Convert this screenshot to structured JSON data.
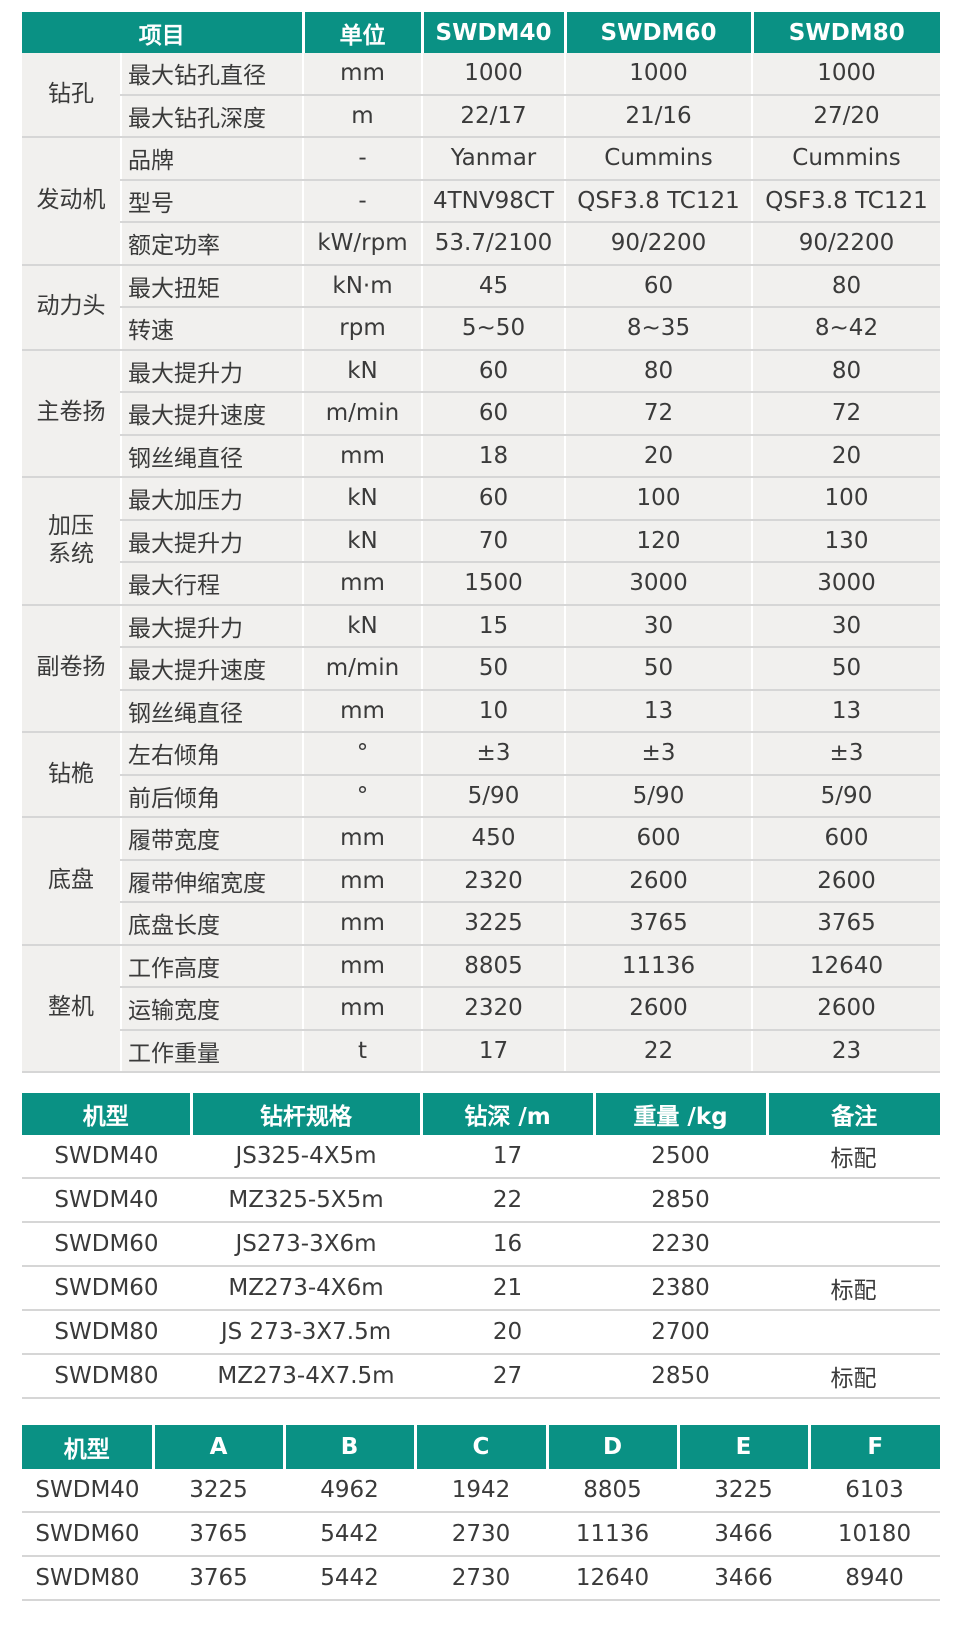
{
  "spec_table": {
    "headers": [
      "项目",
      "单位",
      "SWDM40",
      "SWDM60",
      "SWDM80"
    ],
    "groups": [
      {
        "name": "钻孔",
        "rows": [
          [
            "最大钻孔直径",
            "mm",
            "1000",
            "1000",
            "1000"
          ],
          [
            "最大钻孔深度",
            "m",
            "22/17",
            "21/16",
            "27/20"
          ]
        ]
      },
      {
        "name": "发动机",
        "rows": [
          [
            "品牌",
            "-",
            "Yanmar",
            "Cummins",
            "Cummins"
          ],
          [
            "型号",
            "-",
            "4TNV98CT",
            "QSF3.8 TC121",
            "QSF3.8 TC121"
          ],
          [
            "额定功率",
            "kW/rpm",
            "53.7/2100",
            "90/2200",
            "90/2200"
          ]
        ]
      },
      {
        "name": "动力头",
        "rows": [
          [
            "最大扭矩",
            "kN·m",
            "45",
            "60",
            "80"
          ],
          [
            "转速",
            "rpm",
            "5~50",
            "8~35",
            "8~42"
          ]
        ]
      },
      {
        "name": "主卷扬",
        "rows": [
          [
            "最大提升力",
            "kN",
            "60",
            "80",
            "80"
          ],
          [
            "最大提升速度",
            "m/min",
            "60",
            "72",
            "72"
          ],
          [
            "钢丝绳直径",
            "mm",
            "18",
            "20",
            "20"
          ]
        ]
      },
      {
        "name": "加压\n系统",
        "rows": [
          [
            "最大加压力",
            "kN",
            "60",
            "100",
            "100"
          ],
          [
            "最大提升力",
            "kN",
            "70",
            "120",
            "130"
          ],
          [
            "最大行程",
            "mm",
            "1500",
            "3000",
            "3000"
          ]
        ]
      },
      {
        "name": "副卷扬",
        "rows": [
          [
            "最大提升力",
            "kN",
            "15",
            "30",
            "30"
          ],
          [
            "最大提升速度",
            "m/min",
            "50",
            "50",
            "50"
          ],
          [
            "钢丝绳直径",
            "mm",
            "10",
            "13",
            "13"
          ]
        ]
      },
      {
        "name": "钻桅",
        "rows": [
          [
            "左右倾角",
            "°",
            "±3",
            "±3",
            "±3"
          ],
          [
            "前后倾角",
            "°",
            "5/90",
            "5/90",
            "5/90"
          ]
        ]
      },
      {
        "name": "底盘",
        "rows": [
          [
            "履带宽度",
            "mm",
            "450",
            "600",
            "600"
          ],
          [
            "履带伸缩宽度",
            "mm",
            "2320",
            "2600",
            "2600"
          ],
          [
            "底盘长度",
            "mm",
            "3225",
            "3765",
            "3765"
          ]
        ]
      },
      {
        "name": "整机",
        "rows": [
          [
            "工作高度",
            "mm",
            "8805",
            "11136",
            "12640"
          ],
          [
            "运输宽度",
            "mm",
            "2320",
            "2600",
            "2600"
          ],
          [
            "工作重量",
            "t",
            "17",
            "22",
            "23"
          ]
        ]
      }
    ]
  },
  "rod_table": {
    "headers": [
      "机型",
      "钻杆规格",
      "钻深 /m",
      "重量 /kg",
      "备注"
    ],
    "rows": [
      [
        "SWDM40",
        "JS325-4X5m",
        "17",
        "2500",
        "标配"
      ],
      [
        "SWDM40",
        "MZ325-5X5m",
        "22",
        "2850",
        ""
      ],
      [
        "SWDM60",
        "JS273-3X6m",
        "16",
        "2230",
        ""
      ],
      [
        "SWDM60",
        "MZ273-4X6m",
        "21",
        "2380",
        "标配"
      ],
      [
        "SWDM80",
        "JS 273-3X7.5m",
        "20",
        "2700",
        ""
      ],
      [
        "SWDM80",
        "MZ273-4X7.5m",
        "27",
        "2850",
        "标配"
      ]
    ]
  },
  "dim_table": {
    "headers": [
      "机型",
      "A",
      "B",
      "C",
      "D",
      "E",
      "F"
    ],
    "rows": [
      [
        "SWDM40",
        "3225",
        "4962",
        "1942",
        "8805",
        "3225",
        "6103"
      ],
      [
        "SWDM60",
        "3765",
        "5442",
        "2730",
        "11136",
        "3466",
        "10180"
      ],
      [
        "SWDM80",
        "3765",
        "5442",
        "2730",
        "12640",
        "3466",
        "8940"
      ]
    ]
  },
  "colors": {
    "header": "#0a9184",
    "body": "#f1f0ee"
  }
}
